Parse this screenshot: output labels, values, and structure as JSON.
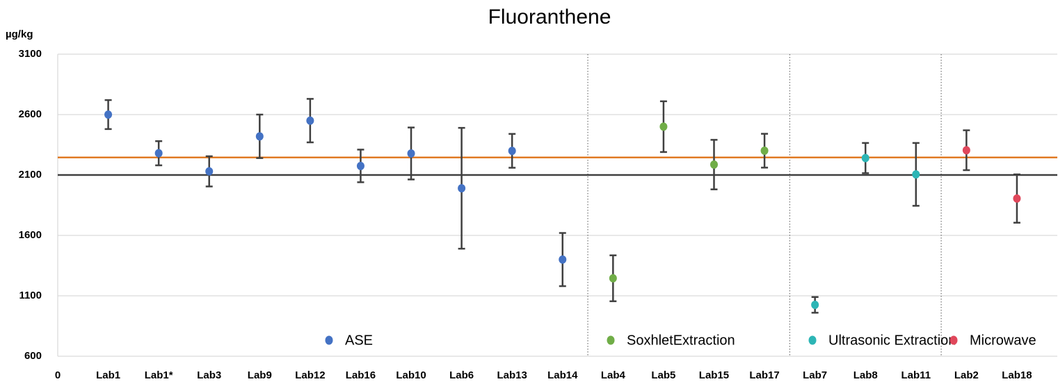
{
  "chart_data": {
    "type": "errorbar",
    "title": "Fluoranthene",
    "y_unit": "µg/kg",
    "categories": [
      "Lab1",
      "Lab1*",
      "Lab3",
      "Lab9",
      "Lab12",
      "Lab16",
      "Lab10",
      "Lab6",
      "Lab13",
      "Lab14",
      "Lab4",
      "Lab5",
      "Lab15",
      "Lab17",
      "Lab7",
      "Lab8",
      "Lab11",
      "Lab2",
      "Lab18"
    ],
    "x": [
      1,
      2,
      3,
      4,
      5,
      6,
      7,
      8,
      9,
      10,
      11,
      12,
      13,
      14,
      15,
      16,
      17,
      18,
      19
    ],
    "xlim": [
      0,
      19.8
    ],
    "xticks": [
      0
    ],
    "ylim": [
      600,
      3100
    ],
    "yticks": [
      600,
      1100,
      1600,
      2100,
      2600,
      3100
    ],
    "grid": true,
    "dividers": [
      10.5,
      14.5,
      17.5
    ],
    "reference_lines": [
      {
        "value": 2245,
        "color": "#e07b24"
      },
      {
        "value": 2100,
        "color": "#404040"
      }
    ],
    "error_color": "#404040",
    "series": [
      {
        "name": "ASE",
        "color": "#4472c4",
        "x": [
          1,
          2,
          3,
          4,
          5,
          6,
          7,
          8,
          9,
          10
        ],
        "values": [
          2600,
          2280,
          2130,
          2420,
          2550,
          2175,
          2278,
          1990,
          2300,
          1400
        ],
        "errors": [
          120,
          100,
          125,
          180,
          180,
          135,
          215,
          500,
          140,
          220
        ]
      },
      {
        "name": "SoxhletExtraction",
        "color": "#70ad47",
        "x": [
          11,
          12,
          13,
          14
        ],
        "values": [
          1245,
          2500,
          2186,
          2301
        ],
        "errors": [
          190,
          210,
          205,
          140
        ]
      },
      {
        "name": "Ultrasonic Extraction",
        "color": "#2cb5b5",
        "x": [
          15,
          16,
          17
        ],
        "values": [
          1025,
          2240,
          2105
        ],
        "errors": [
          65,
          125,
          260
        ]
      },
      {
        "name": "Microwave",
        "color": "#e0475b",
        "x": [
          18,
          19
        ],
        "values": [
          2305,
          1905
        ],
        "errors": [
          165,
          200
        ]
      }
    ]
  }
}
